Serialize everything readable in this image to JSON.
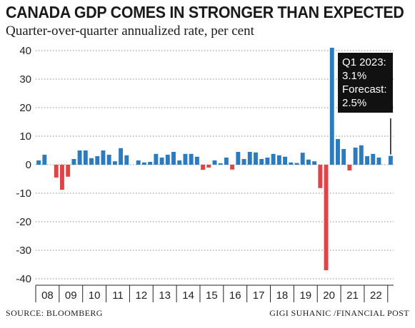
{
  "title": "CANADA GDP COMES IN STRONGER THAN EXPECTED",
  "subtitle": "Quarter-over-quarter annualized rate, per cent",
  "source": "SOURCE: BLOOMBERG",
  "credit": "GIGI SUHANIC /FINANCIAL POST",
  "callout": {
    "line1": "Q1 2023:",
    "line2": "3.1%",
    "line3": "Forecast:",
    "line4": "2.5%"
  },
  "colors": {
    "positive": "#2b7bc0",
    "negative": "#e04444",
    "grid": "#888888",
    "callout_bg": "#111111"
  },
  "chart_data": {
    "type": "bar",
    "title": "CANADA GDP COMES IN STRONGER THAN EXPECTED",
    "subtitle": "Quarter-over-quarter annualized rate, per cent",
    "ylim": [
      -40,
      40
    ],
    "yticks": [
      40,
      30,
      20,
      10,
      0,
      -10,
      -20,
      -30,
      -40
    ],
    "grid": "horizontal dotted",
    "year_labels": [
      "08",
      "09",
      "10",
      "11",
      "12",
      "13",
      "14",
      "15",
      "16",
      "17",
      "18",
      "19",
      "20",
      "21",
      "22"
    ],
    "categories": [
      "2008 Q1",
      "2008 Q2",
      "2008 Q3",
      "2008 Q4",
      "2009 Q1",
      "2009 Q2",
      "2009 Q3",
      "2009 Q4",
      "2010 Q1",
      "2010 Q2",
      "2010 Q3",
      "2010 Q4",
      "2011 Q1",
      "2011 Q2",
      "2011 Q3",
      "2011 Q4",
      "2012 Q1",
      "2012 Q2",
      "2012 Q3",
      "2012 Q4",
      "2013 Q1",
      "2013 Q2",
      "2013 Q3",
      "2013 Q4",
      "2014 Q1",
      "2014 Q2",
      "2014 Q3",
      "2014 Q4",
      "2015 Q1",
      "2015 Q2",
      "2015 Q3",
      "2015 Q4",
      "2016 Q1",
      "2016 Q2",
      "2016 Q3",
      "2016 Q4",
      "2017 Q1",
      "2017 Q2",
      "2017 Q3",
      "2017 Q4",
      "2018 Q1",
      "2018 Q2",
      "2018 Q3",
      "2018 Q4",
      "2019 Q1",
      "2019 Q2",
      "2019 Q3",
      "2019 Q4",
      "2020 Q1",
      "2020 Q2",
      "2020 Q3",
      "2020 Q4",
      "2021 Q1",
      "2021 Q2",
      "2021 Q3",
      "2021 Q4",
      "2022 Q1",
      "2022 Q2",
      "2022 Q3",
      "2022 Q4",
      "2023 Q1"
    ],
    "values": [
      1.5,
      3.5,
      0,
      -4.5,
      -8.8,
      -4.2,
      2.0,
      5.0,
      5.0,
      2.3,
      3.0,
      5.0,
      3.5,
      1.2,
      5.8,
      3.3,
      0,
      1.5,
      0.8,
      1.0,
      3.8,
      2.5,
      3.5,
      4.5,
      1.5,
      3.8,
      3.8,
      2.8,
      -1.8,
      -1.0,
      1.5,
      0.5,
      2.5,
      -1.7,
      4.5,
      2.0,
      4.5,
      4.3,
      2.0,
      2.5,
      3.8,
      3.3,
      2.8,
      0.8,
      0.6,
      4.2,
      1.8,
      1.2,
      -8.2,
      -37.0,
      41.0,
      9.0,
      5.5,
      -2.0,
      6.0,
      6.8,
      3.0,
      3.8,
      2.5,
      0,
      3.1
    ],
    "highlight": {
      "category": "2023 Q1",
      "value": 3.1,
      "forecast": 2.5
    }
  }
}
